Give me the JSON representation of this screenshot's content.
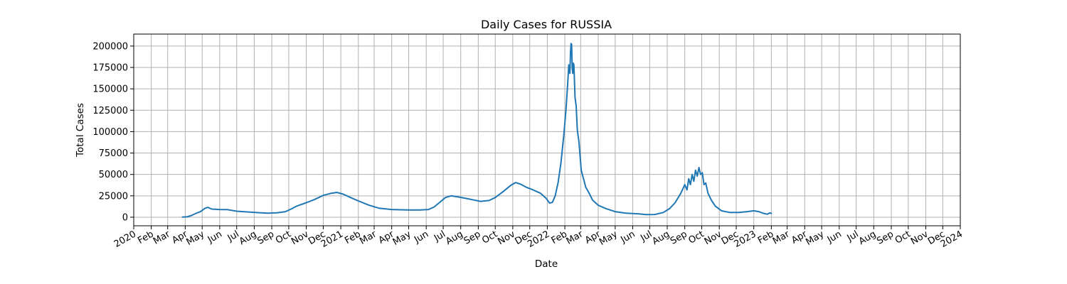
{
  "chart_data": {
    "type": "line",
    "title": "Daily Cases for RUSSIA",
    "xlabel": "Date",
    "ylabel": "Total Cases",
    "grid": true,
    "legend": "none",
    "xlim": [
      "2020-01-01",
      "2024-01-01"
    ],
    "ylim": [
      -10000,
      214000
    ],
    "x_ticks": [
      {
        "date": "2020-01-01",
        "label": "2020"
      },
      {
        "date": "2020-02-01",
        "label": "Feb"
      },
      {
        "date": "2020-03-01",
        "label": "Mar"
      },
      {
        "date": "2020-04-01",
        "label": "Apr"
      },
      {
        "date": "2020-05-01",
        "label": "May"
      },
      {
        "date": "2020-06-01",
        "label": "Jun"
      },
      {
        "date": "2020-07-01",
        "label": "Jul"
      },
      {
        "date": "2020-08-01",
        "label": "Aug"
      },
      {
        "date": "2020-09-01",
        "label": "Sep"
      },
      {
        "date": "2020-10-01",
        "label": "Oct"
      },
      {
        "date": "2020-11-01",
        "label": "Nov"
      },
      {
        "date": "2020-12-01",
        "label": "Dec"
      },
      {
        "date": "2021-01-01",
        "label": "2021"
      },
      {
        "date": "2021-02-01",
        "label": "Feb"
      },
      {
        "date": "2021-03-01",
        "label": "Mar"
      },
      {
        "date": "2021-04-01",
        "label": "Apr"
      },
      {
        "date": "2021-05-01",
        "label": "May"
      },
      {
        "date": "2021-06-01",
        "label": "Jun"
      },
      {
        "date": "2021-07-01",
        "label": "Jul"
      },
      {
        "date": "2021-08-01",
        "label": "Aug"
      },
      {
        "date": "2021-09-01",
        "label": "Sep"
      },
      {
        "date": "2021-10-01",
        "label": "Oct"
      },
      {
        "date": "2021-11-01",
        "label": "Nov"
      },
      {
        "date": "2021-12-01",
        "label": "Dec"
      },
      {
        "date": "2022-01-01",
        "label": "2022"
      },
      {
        "date": "2022-02-01",
        "label": "Feb"
      },
      {
        "date": "2022-03-01",
        "label": "Mar"
      },
      {
        "date": "2022-04-01",
        "label": "Apr"
      },
      {
        "date": "2022-05-01",
        "label": "May"
      },
      {
        "date": "2022-06-01",
        "label": "Jun"
      },
      {
        "date": "2022-07-01",
        "label": "Jul"
      },
      {
        "date": "2022-08-01",
        "label": "Aug"
      },
      {
        "date": "2022-09-01",
        "label": "Sep"
      },
      {
        "date": "2022-10-01",
        "label": "Oct"
      },
      {
        "date": "2022-11-01",
        "label": "Nov"
      },
      {
        "date": "2022-12-01",
        "label": "Dec"
      },
      {
        "date": "2023-01-01",
        "label": "2023"
      },
      {
        "date": "2023-02-01",
        "label": "Feb"
      },
      {
        "date": "2023-03-01",
        "label": "Mar"
      },
      {
        "date": "2023-04-01",
        "label": "Apr"
      },
      {
        "date": "2023-05-01",
        "label": "May"
      },
      {
        "date": "2023-06-01",
        "label": "Jun"
      },
      {
        "date": "2023-07-01",
        "label": "Jul"
      },
      {
        "date": "2023-08-01",
        "label": "Aug"
      },
      {
        "date": "2023-09-01",
        "label": "Sep"
      },
      {
        "date": "2023-10-01",
        "label": "Oct"
      },
      {
        "date": "2023-11-01",
        "label": "Nov"
      },
      {
        "date": "2023-12-01",
        "label": "Dec"
      },
      {
        "date": "2024-01-01",
        "label": "2024"
      }
    ],
    "y_ticks": [
      0,
      25000,
      50000,
      75000,
      100000,
      125000,
      150000,
      175000,
      200000
    ],
    "series": [
      {
        "color": "#1f77b4",
        "points": [
          [
            "2020-03-27",
            200
          ],
          [
            "2020-04-05",
            600
          ],
          [
            "2020-04-12",
            2000
          ],
          [
            "2020-04-20",
            4500
          ],
          [
            "2020-04-28",
            6500
          ],
          [
            "2020-05-06",
            10500
          ],
          [
            "2020-05-11",
            11500
          ],
          [
            "2020-05-18",
            9500
          ],
          [
            "2020-06-01",
            9000
          ],
          [
            "2020-06-15",
            8800
          ],
          [
            "2020-07-01",
            7000
          ],
          [
            "2020-07-20",
            6200
          ],
          [
            "2020-08-10",
            5300
          ],
          [
            "2020-08-25",
            4800
          ],
          [
            "2020-09-10",
            5200
          ],
          [
            "2020-09-25",
            6500
          ],
          [
            "2020-10-05",
            9500
          ],
          [
            "2020-10-15",
            13000
          ],
          [
            "2020-11-01",
            17000
          ],
          [
            "2020-11-15",
            20500
          ],
          [
            "2020-12-01",
            25500
          ],
          [
            "2020-12-15",
            28000
          ],
          [
            "2020-12-25",
            29000
          ],
          [
            "2021-01-05",
            27000
          ],
          [
            "2021-01-20",
            22500
          ],
          [
            "2021-02-01",
            19000
          ],
          [
            "2021-02-20",
            14000
          ],
          [
            "2021-03-10",
            10500
          ],
          [
            "2021-04-01",
            9000
          ],
          [
            "2021-05-01",
            8500
          ],
          [
            "2021-05-20",
            8500
          ],
          [
            "2021-06-05",
            9000
          ],
          [
            "2021-06-15",
            12000
          ],
          [
            "2021-06-25",
            17500
          ],
          [
            "2021-07-05",
            23000
          ],
          [
            "2021-07-15",
            25000
          ],
          [
            "2021-07-25",
            24000
          ],
          [
            "2021-08-10",
            22000
          ],
          [
            "2021-08-25",
            20000
          ],
          [
            "2021-09-05",
            18500
          ],
          [
            "2021-09-20",
            19500
          ],
          [
            "2021-10-01",
            23000
          ],
          [
            "2021-10-15",
            30000
          ],
          [
            "2021-10-28",
            37000
          ],
          [
            "2021-11-06",
            40500
          ],
          [
            "2021-11-15",
            38500
          ],
          [
            "2021-11-25",
            35000
          ],
          [
            "2021-12-05",
            32500
          ],
          [
            "2021-12-20",
            28000
          ],
          [
            "2021-12-30",
            22000
          ],
          [
            "2022-01-05",
            16500
          ],
          [
            "2022-01-10",
            17500
          ],
          [
            "2022-01-15",
            25000
          ],
          [
            "2022-01-20",
            40000
          ],
          [
            "2022-01-25",
            63000
          ],
          [
            "2022-01-30",
            95000
          ],
          [
            "2022-02-03",
            125000
          ],
          [
            "2022-02-06",
            155000
          ],
          [
            "2022-02-08",
            178000
          ],
          [
            "2022-02-10",
            168000
          ],
          [
            "2022-02-11",
            192000
          ],
          [
            "2022-02-12",
            203000
          ],
          [
            "2022-02-13",
            202000
          ],
          [
            "2022-02-14",
            175000
          ],
          [
            "2022-02-15",
            168000
          ],
          [
            "2022-02-16",
            180000
          ],
          [
            "2022-02-17",
            178000
          ],
          [
            "2022-02-19",
            140000
          ],
          [
            "2022-02-21",
            130000
          ],
          [
            "2022-02-23",
            102000
          ],
          [
            "2022-02-26",
            88000
          ],
          [
            "2022-03-02",
            55000
          ],
          [
            "2022-03-06",
            45000
          ],
          [
            "2022-03-10",
            35000
          ],
          [
            "2022-03-16",
            28000
          ],
          [
            "2022-03-22",
            20000
          ],
          [
            "2022-04-01",
            14000
          ],
          [
            "2022-04-15",
            10000
          ],
          [
            "2022-05-01",
            6500
          ],
          [
            "2022-05-20",
            4700
          ],
          [
            "2022-06-10",
            4000
          ],
          [
            "2022-06-25",
            3000
          ],
          [
            "2022-07-10",
            3200
          ],
          [
            "2022-07-25",
            5500
          ],
          [
            "2022-08-05",
            10000
          ],
          [
            "2022-08-15",
            17000
          ],
          [
            "2022-08-25",
            28000
          ],
          [
            "2022-09-01",
            38000
          ],
          [
            "2022-09-05",
            32000
          ],
          [
            "2022-09-08",
            45000
          ],
          [
            "2022-09-11",
            38000
          ],
          [
            "2022-09-14",
            50000
          ],
          [
            "2022-09-17",
            42000
          ],
          [
            "2022-09-20",
            55000
          ],
          [
            "2022-09-23",
            48000
          ],
          [
            "2022-09-26",
            58000
          ],
          [
            "2022-09-29",
            50000
          ],
          [
            "2022-10-02",
            52000
          ],
          [
            "2022-10-05",
            38000
          ],
          [
            "2022-10-08",
            40000
          ],
          [
            "2022-10-12",
            28000
          ],
          [
            "2022-10-18",
            20000
          ],
          [
            "2022-10-25",
            13000
          ],
          [
            "2022-11-05",
            7500
          ],
          [
            "2022-11-20",
            5500
          ],
          [
            "2022-12-05",
            5500
          ],
          [
            "2022-12-20",
            6500
          ],
          [
            "2023-01-01",
            7500
          ],
          [
            "2023-01-10",
            6500
          ],
          [
            "2023-01-18",
            4500
          ],
          [
            "2023-01-25",
            3500
          ],
          [
            "2023-01-29",
            5000
          ],
          [
            "2023-02-01",
            4500
          ]
        ]
      }
    ]
  }
}
